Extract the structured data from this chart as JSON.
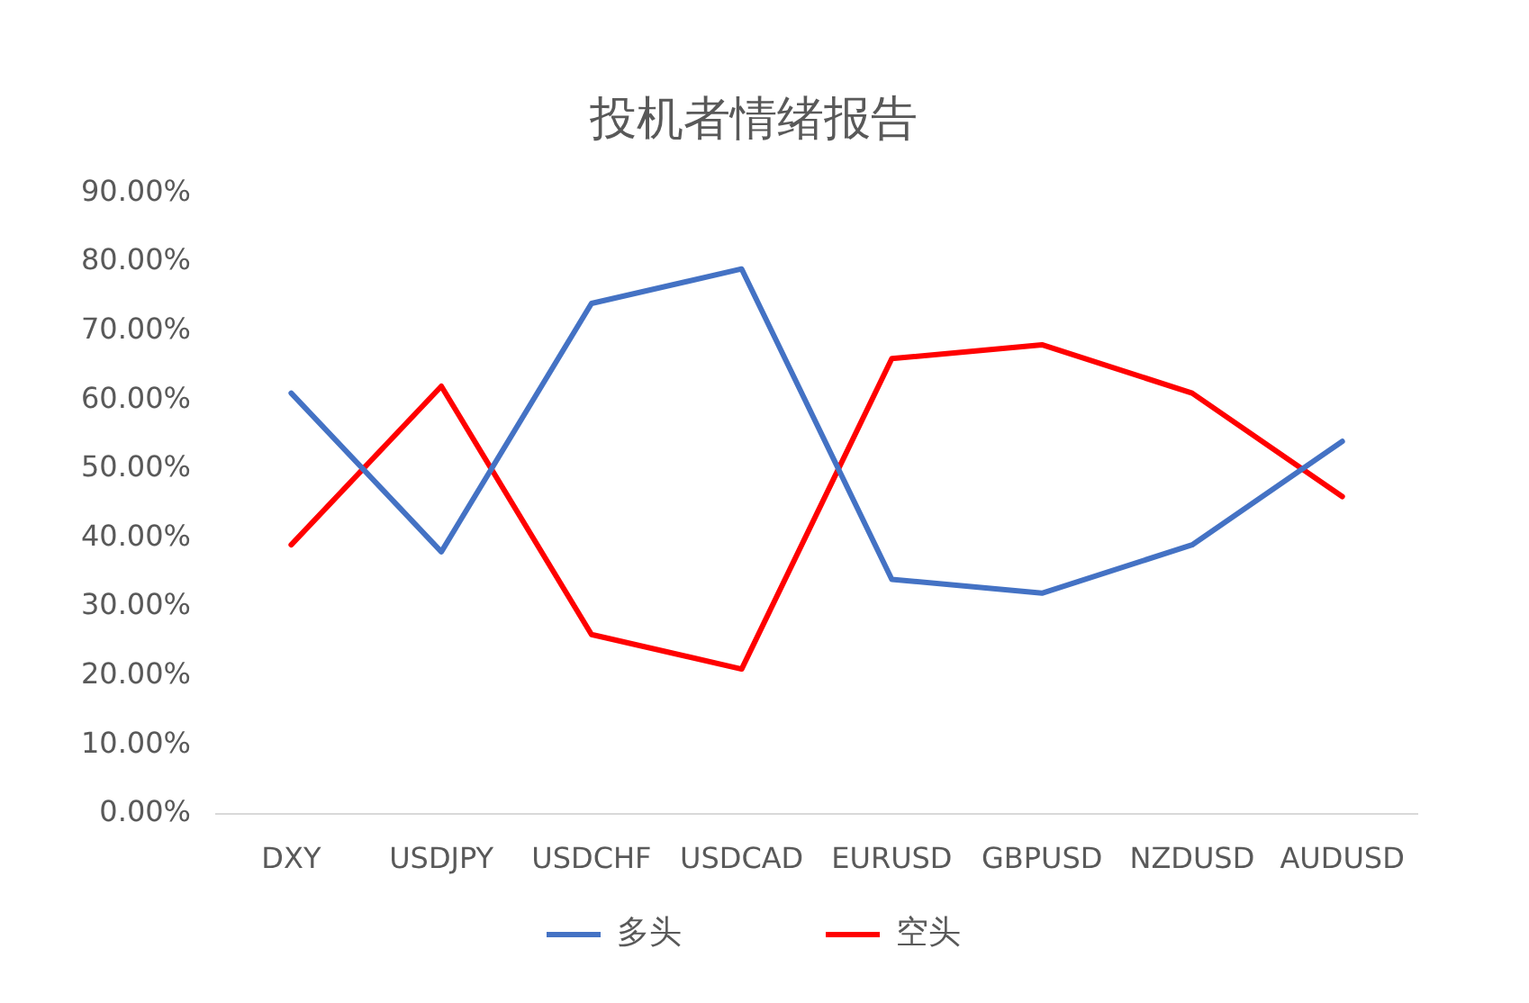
{
  "chart_data": {
    "type": "line",
    "title": "投机者情绪报告",
    "categories": [
      "DXY",
      "USDJPY",
      "USDCHF",
      "USDCAD",
      "EURUSD",
      "GBPUSD",
      "NZDUSD",
      "AUDUSD"
    ],
    "series": [
      {
        "name": "多头",
        "color": "#4472c4",
        "values": [
          61,
          38,
          74,
          79,
          34,
          32,
          39,
          54
        ]
      },
      {
        "name": "空头",
        "color": "#ff0000",
        "values": [
          39,
          62,
          26,
          21,
          66,
          68,
          61,
          46
        ]
      }
    ],
    "ylim": [
      0,
      90
    ],
    "yticks": [
      {
        "value": 0,
        "label": "0.00%"
      },
      {
        "value": 10,
        "label": "10.00%"
      },
      {
        "value": 20,
        "label": "20.00%"
      },
      {
        "value": 30,
        "label": "30.00%"
      },
      {
        "value": 40,
        "label": "40.00%"
      },
      {
        "value": 50,
        "label": "50.00%"
      },
      {
        "value": 60,
        "label": "60.00%"
      },
      {
        "value": 70,
        "label": "70.00%"
      },
      {
        "value": 80,
        "label": "80.00%"
      },
      {
        "value": 90,
        "label": "90.00%"
      }
    ],
    "grid": false,
    "legend": "bottom",
    "marker": "none",
    "line_style": "solid"
  }
}
